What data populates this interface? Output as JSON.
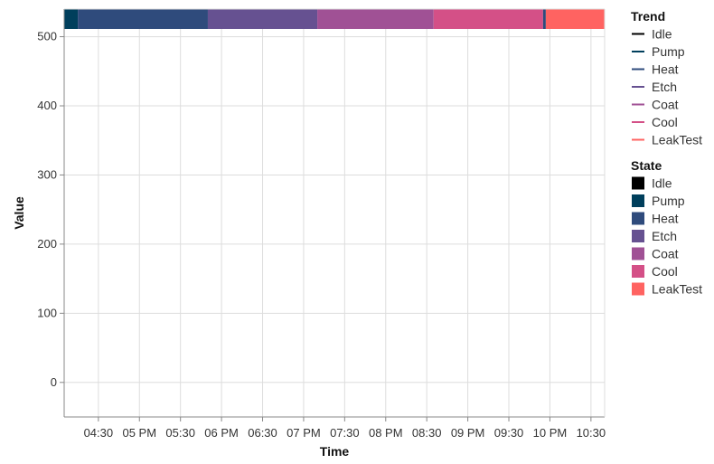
{
  "chart_data": {
    "type": "line",
    "title": "",
    "xlabel": "Time",
    "ylabel": "Value",
    "ylim": [
      -50,
      540
    ],
    "y_ticks": [
      0,
      100,
      200,
      300,
      400,
      500
    ],
    "y_tick_labels": [
      "0",
      "100",
      "200",
      "300",
      "400",
      "500"
    ],
    "x_range": [
      "16:05",
      "22:40"
    ],
    "x_ticks": [
      "16:30",
      "17:00",
      "17:30",
      "18:00",
      "18:30",
      "19:00",
      "19:30",
      "20:00",
      "20:30",
      "21:00",
      "21:30",
      "22:00",
      "22:30"
    ],
    "x_tick_labels": [
      "04:30",
      "05 PM",
      "05:30",
      "06 PM",
      "06:30",
      "07 PM",
      "07:30",
      "08 PM",
      "08:30",
      "09 PM",
      "09:30",
      "10 PM",
      "10:30"
    ],
    "grid": true,
    "series": [],
    "state_bands": [
      {
        "state": "Pump",
        "start": "16:05",
        "end": "16:15"
      },
      {
        "state": "Heat",
        "start": "16:15",
        "end": "17:50"
      },
      {
        "state": "Etch",
        "start": "17:50",
        "end": "19:10"
      },
      {
        "state": "Coat",
        "start": "19:10",
        "end": "20:35"
      },
      {
        "state": "Cool",
        "start": "20:35",
        "end": "21:55"
      },
      {
        "state": "Heat",
        "start": "21:55",
        "end": "21:57"
      },
      {
        "state": "LeakTest",
        "start": "21:57",
        "end": "22:40"
      }
    ],
    "legends": [
      {
        "title": "Trend",
        "kind": "line",
        "entries": [
          {
            "label": "Idle",
            "color": "#000000"
          },
          {
            "label": "Pump",
            "color": "#003f5c"
          },
          {
            "label": "Heat",
            "color": "#2f4b7c"
          },
          {
            "label": "Etch",
            "color": "#665191"
          },
          {
            "label": "Coat",
            "color": "#a05195"
          },
          {
            "label": "Cool",
            "color": "#d45087"
          },
          {
            "label": "LeakTest",
            "color": "#ff6361"
          }
        ]
      },
      {
        "title": "State",
        "kind": "square",
        "entries": [
          {
            "label": "Idle",
            "color": "#000000"
          },
          {
            "label": "Pump",
            "color": "#003f5c"
          },
          {
            "label": "Heat",
            "color": "#2f4b7c"
          },
          {
            "label": "Etch",
            "color": "#665191"
          },
          {
            "label": "Coat",
            "color": "#a05195"
          },
          {
            "label": "Cool",
            "color": "#d45087"
          },
          {
            "label": "LeakTest",
            "color": "#ff6361"
          }
        ]
      }
    ],
    "state_colors": {
      "Idle": "#000000",
      "Pump": "#003f5c",
      "Heat": "#2f4b7c",
      "Etch": "#665191",
      "Coat": "#a05195",
      "Cool": "#d45087",
      "LeakTest": "#ff6361"
    }
  }
}
